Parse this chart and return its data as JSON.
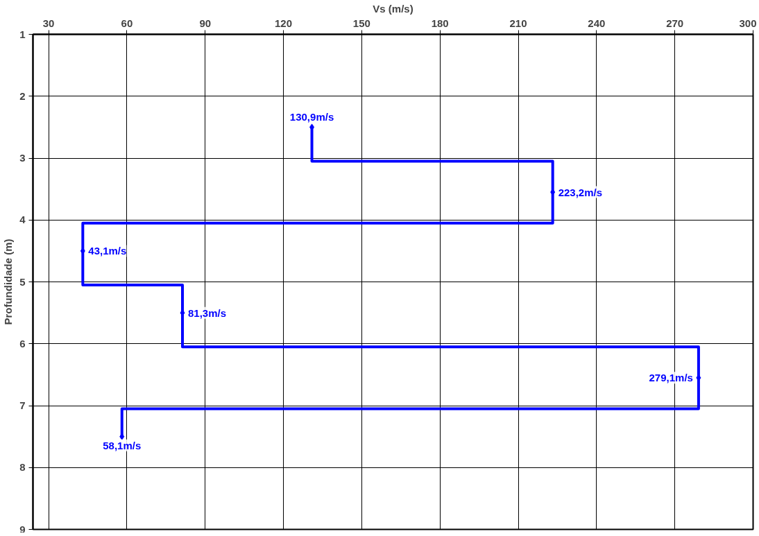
{
  "chart_data": {
    "type": "line",
    "orientation": "horizontal",
    "xlabel": "Vs (m/s)",
    "ylabel": "Profundidade (m)",
    "xlim": [
      24,
      300
    ],
    "xticks": [
      30,
      60,
      90,
      120,
      150,
      180,
      210,
      240,
      270,
      300
    ],
    "ylim": [
      9,
      1
    ],
    "yticks": [
      1,
      2,
      3,
      4,
      5,
      6,
      7,
      8,
      9
    ],
    "grid": true,
    "series": [
      {
        "color": "#0000ff",
        "marker": "none",
        "line_style": "solid",
        "x": [
          2.5,
          3.05,
          3.05,
          4.05,
          4.05,
          5.05,
          5.05,
          6.05,
          6.05,
          7.05,
          7.05,
          7.5
        ],
        "values": [
          130.9,
          130.9,
          223.2,
          223.2,
          43.1,
          43.1,
          81.3,
          81.3,
          279.1,
          279.1,
          58.1,
          58.1
        ]
      },
      {
        "type": "scatter",
        "color": "#0000ff",
        "marker": "diamond",
        "x": [
          2.5,
          3.55,
          4.5,
          5.5,
          6.55,
          7.5
        ],
        "values": [
          130.9,
          223.2,
          43.1,
          81.3,
          279.1,
          58.1
        ],
        "value_labels": [
          "130,9m/s",
          "223,2m/s",
          "43,1m/s",
          "81,3m/s",
          "279,1m/s",
          "58,1m/s"
        ]
      }
    ]
  }
}
